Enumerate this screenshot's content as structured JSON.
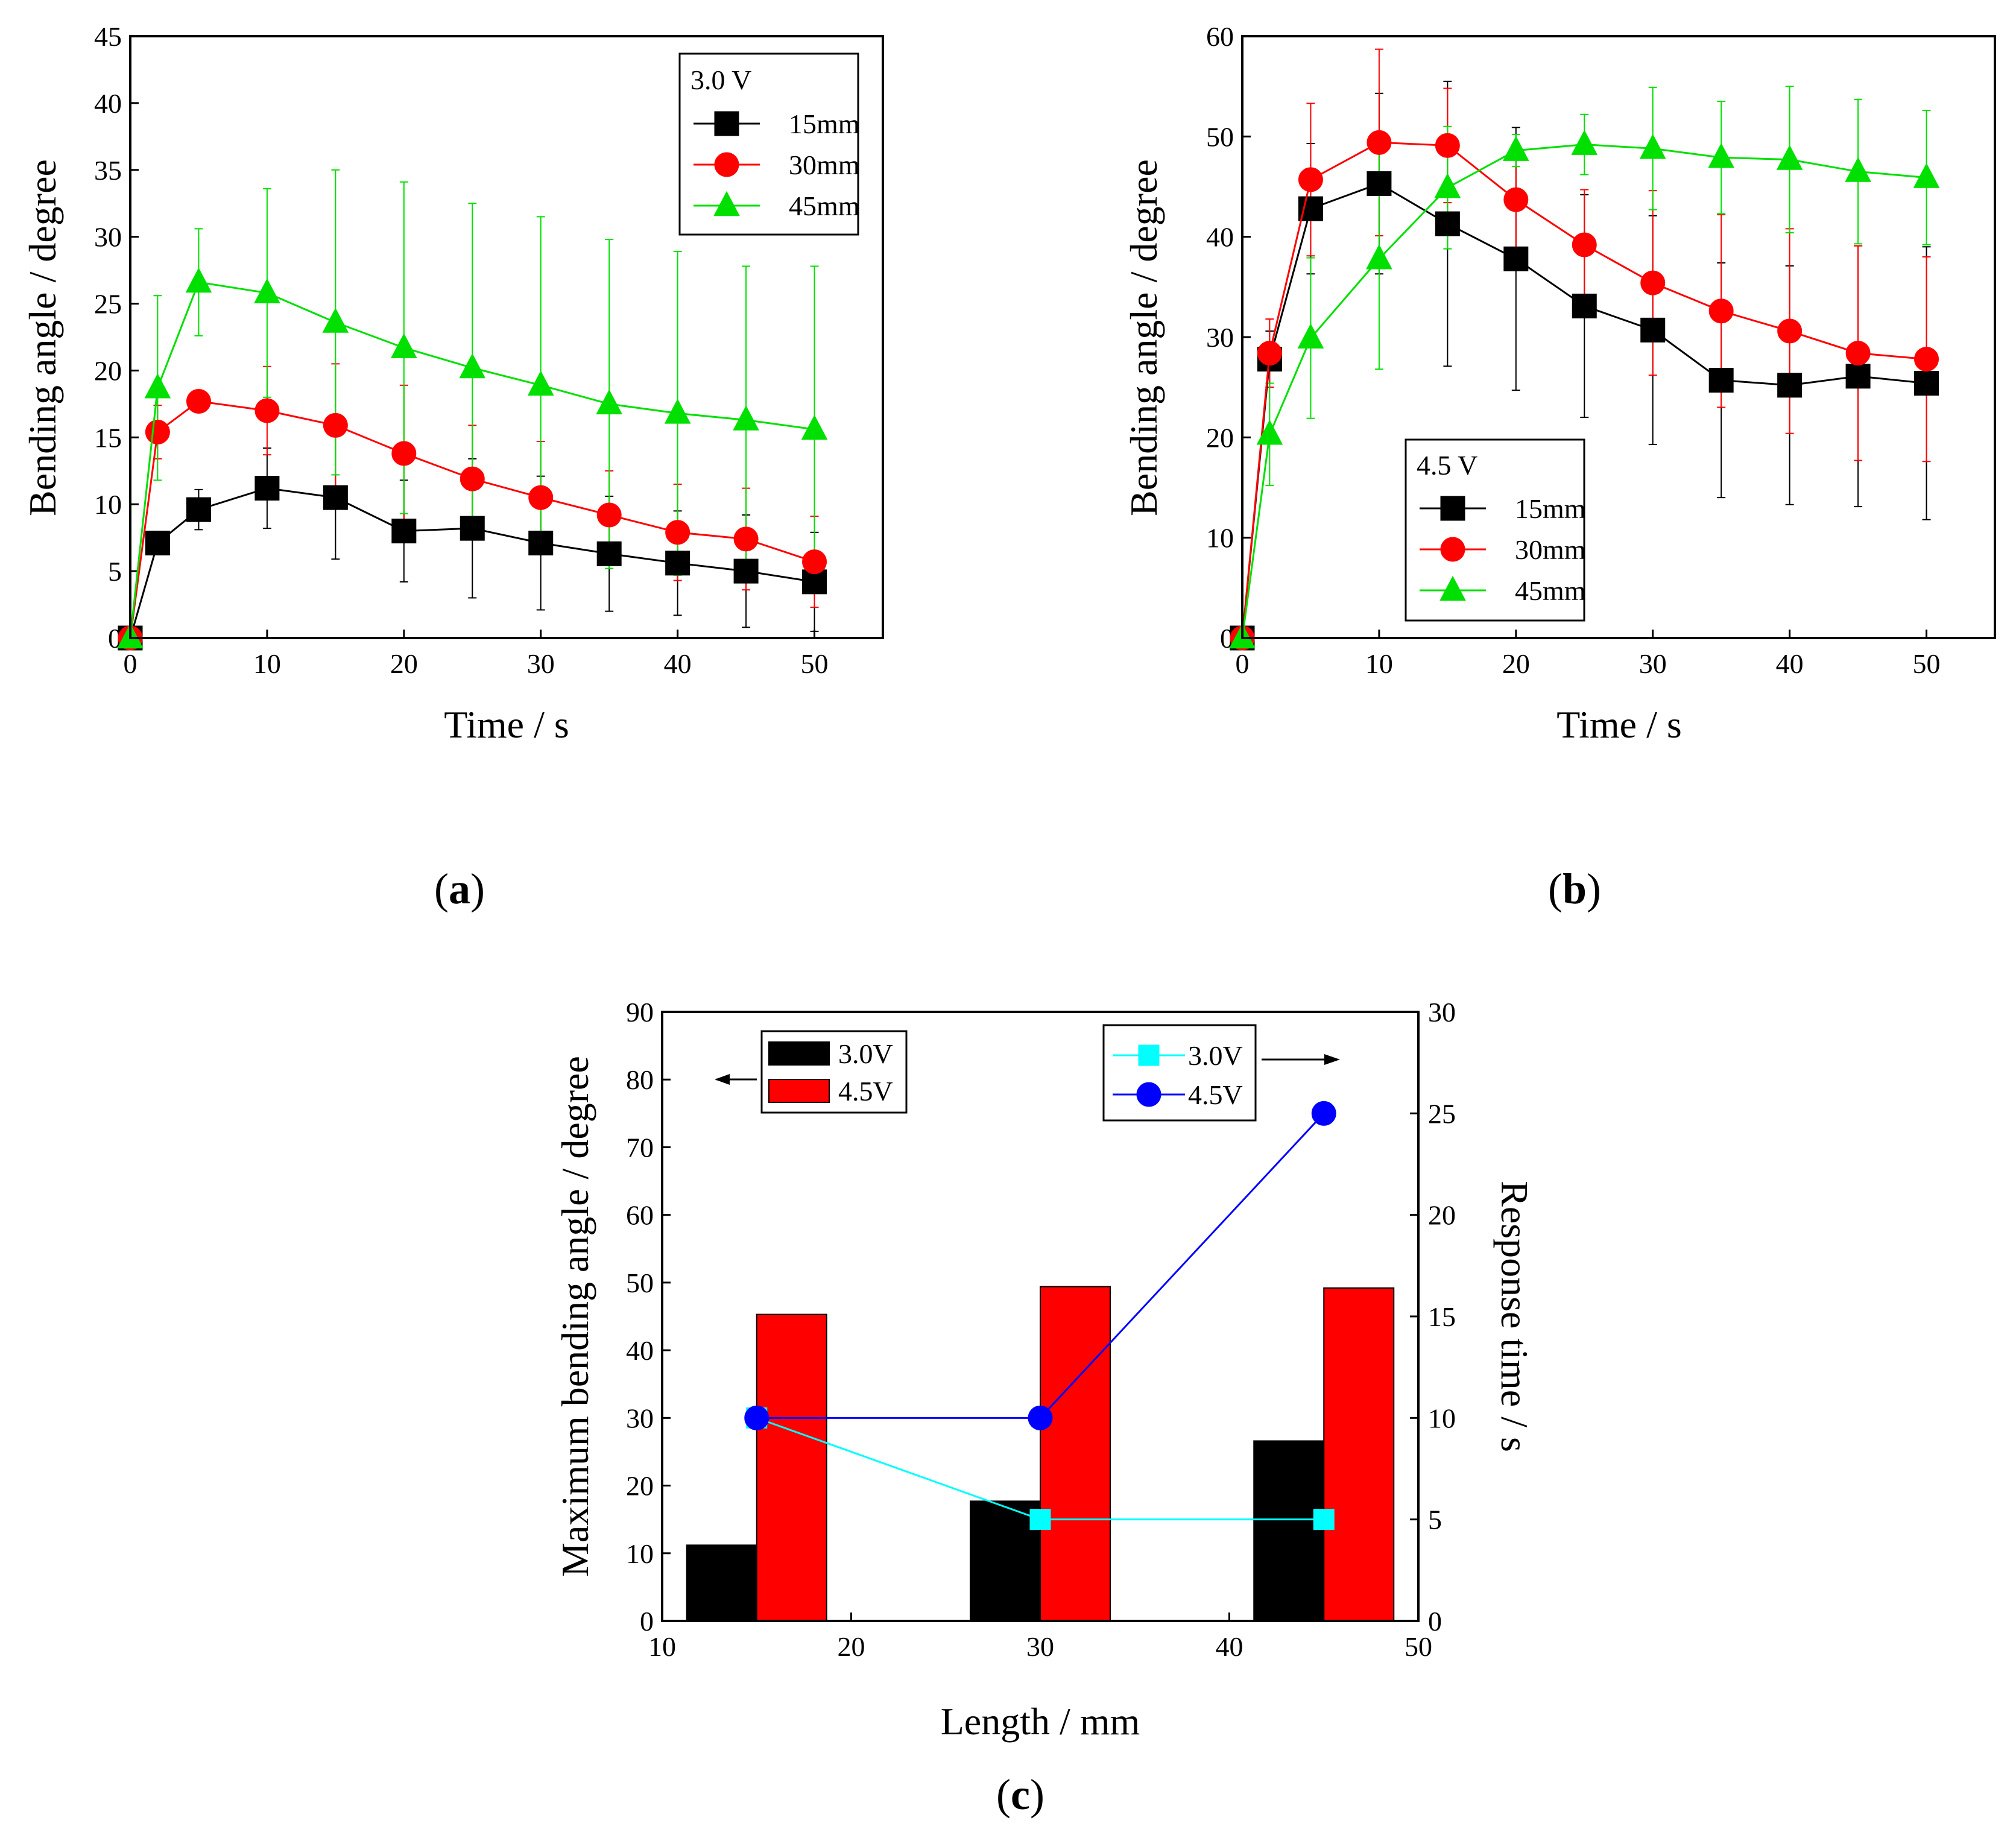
{
  "figure": {
    "panel_tags": [
      {
        "open": "(",
        "letter": "a",
        "close": ")"
      },
      {
        "open": "(",
        "letter": "b",
        "close": ")"
      },
      {
        "open": "(",
        "letter": "c",
        "close": ")"
      }
    ]
  },
  "colors": {
    "black": "#000000",
    "red": "#ff0000",
    "green": "#00e000",
    "cyan": "#00ffff",
    "blue": "#0000ff"
  },
  "chart_data": [
    {
      "id": "a",
      "type": "line",
      "xlabel": "Time / s",
      "ylabel": "Bending angle / degree",
      "xlim": [
        0,
        55
      ],
      "ylim": [
        0,
        45
      ],
      "xticks": [
        0,
        10,
        20,
        30,
        40,
        50
      ],
      "yticks": [
        0,
        5,
        10,
        15,
        20,
        25,
        30,
        35,
        40,
        45
      ],
      "legend": {
        "title": "3.0 V",
        "placement": "top-right"
      },
      "x": [
        0,
        2,
        5,
        10,
        15,
        20,
        25,
        30,
        35,
        40,
        45,
        50
      ],
      "series": [
        {
          "name": "15mm",
          "marker": "square",
          "color": "#000000",
          "values": [
            0,
            7.1,
            9.6,
            11.2,
            10.5,
            8.0,
            8.2,
            7.1,
            6.3,
            5.6,
            5.0,
            4.2
          ],
          "errors": [
            0,
            0.4,
            1.5,
            3.0,
            4.6,
            3.8,
            5.2,
            5.0,
            4.3,
            3.9,
            4.2,
            3.7
          ]
        },
        {
          "name": "30mm",
          "marker": "circle",
          "color": "#ff0000",
          "values": [
            0,
            15.4,
            17.7,
            17.0,
            15.9,
            13.8,
            11.9,
            10.5,
            9.2,
            7.9,
            7.4,
            5.7
          ],
          "errors": [
            0,
            2.0,
            0.5,
            3.3,
            4.6,
            5.1,
            4.0,
            4.2,
            3.3,
            3.6,
            3.8,
            3.4
          ]
        },
        {
          "name": "45mm",
          "marker": "triangle",
          "color": "#00e000",
          "values": [
            0,
            18.7,
            26.6,
            25.8,
            23.6,
            21.7,
            20.2,
            18.9,
            17.5,
            16.8,
            16.3,
            15.6
          ],
          "errors": [
            0,
            6.9,
            4.0,
            7.8,
            11.4,
            12.4,
            12.3,
            12.6,
            12.3,
            12.1,
            11.5,
            12.2
          ]
        }
      ]
    },
    {
      "id": "b",
      "type": "line",
      "xlabel": "Time / s",
      "ylabel": "Bending angle / degree",
      "xlim": [
        0,
        55
      ],
      "ylim": [
        0,
        60
      ],
      "xticks": [
        0,
        10,
        20,
        30,
        40,
        50
      ],
      "yticks": [
        0,
        10,
        20,
        30,
        40,
        50,
        60
      ],
      "legend": {
        "title": "4.5 V",
        "placement": "bottom-center"
      },
      "x": [
        0,
        2,
        5,
        10,
        15,
        20,
        25,
        30,
        35,
        40,
        45,
        50
      ],
      "series": [
        {
          "name": "15mm",
          "marker": "square",
          "color": "#000000",
          "values": [
            0,
            27.8,
            42.8,
            45.3,
            41.3,
            37.8,
            33.1,
            30.7,
            25.7,
            25.2,
            26.1,
            25.4
          ],
          "errors": [
            0,
            2.8,
            6.5,
            9.0,
            14.2,
            13.1,
            11.1,
            11.4,
            11.7,
            11.9,
            13.0,
            13.6
          ]
        },
        {
          "name": "30mm",
          "marker": "circle",
          "color": "#ff0000",
          "values": [
            0,
            28.4,
            45.7,
            49.4,
            49.1,
            43.7,
            39.2,
            35.4,
            32.6,
            30.6,
            28.4,
            27.8
          ],
          "errors": [
            0,
            3.4,
            7.6,
            9.3,
            5.7,
            5.1,
            5.5,
            9.2,
            9.6,
            10.2,
            10.7,
            10.2
          ]
        },
        {
          "name": "45mm",
          "marker": "triangle",
          "color": "#00e000",
          "values": [
            0,
            20.3,
            29.9,
            37.8,
            44.9,
            48.6,
            49.2,
            48.8,
            47.9,
            47.7,
            46.5,
            45.9
          ],
          "errors": [
            0,
            5.1,
            8.0,
            11.0,
            6.1,
            1.6,
            3.0,
            6.1,
            5.6,
            7.3,
            7.2,
            6.7
          ]
        }
      ]
    },
    {
      "id": "c",
      "type": "bar",
      "xlabel": "Length / mm",
      "ylabel": "Maximum bending angle / degree",
      "y2label": "Response time / s",
      "xlim": [
        10,
        50
      ],
      "ylim": [
        0,
        90
      ],
      "y2lim": [
        0,
        30
      ],
      "xticks": [
        10,
        20,
        30,
        40,
        50
      ],
      "yticks": [
        0,
        10,
        20,
        30,
        40,
        50,
        60,
        70,
        80,
        90
      ],
      "y2ticks": [
        0,
        5,
        10,
        15,
        20,
        25,
        30
      ],
      "categories": [
        15,
        30,
        45
      ],
      "bars": [
        {
          "name": "3.0V",
          "color": "#000000",
          "values": [
            11.2,
            17.7,
            26.6
          ]
        },
        {
          "name": "4.5V",
          "color": "#ff0000",
          "values": [
            45.3,
            49.4,
            49.2
          ]
        }
      ],
      "lines": [
        {
          "name": "3.0V",
          "marker": "square",
          "color": "#00ffff",
          "values": [
            10,
            5,
            5
          ]
        },
        {
          "name": "4.5V",
          "marker": "circle",
          "color": "#0000ff",
          "values": [
            10,
            10,
            25
          ]
        }
      ],
      "legend_left": {
        "placement": "top-left",
        "arrow": "left"
      },
      "legend_right": {
        "placement": "top-right",
        "arrow": "right"
      }
    }
  ]
}
